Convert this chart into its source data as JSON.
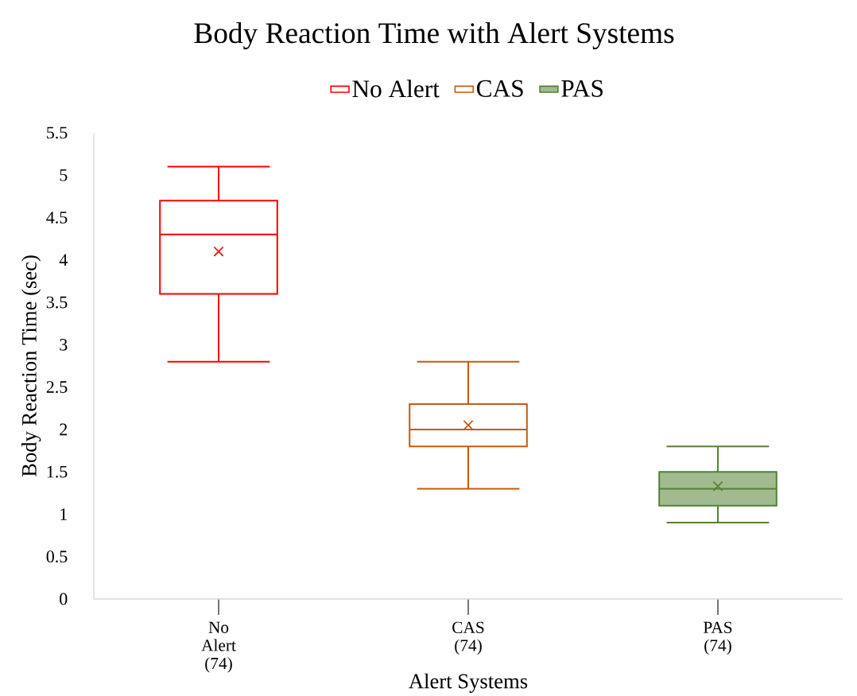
{
  "chart_data": {
    "type": "box",
    "title": "Body Reaction Time with Alert Systems",
    "xlabel": "Alert Systems",
    "ylabel": "Body Reaction Time (sec)",
    "categories": [
      "No Alert (74)",
      "CAS (74)",
      "PAS (74)"
    ],
    "series": [
      {
        "name": "No Alert",
        "color": "#ff0000",
        "boxes": [
          {
            "low": 2.8,
            "q1": 3.6,
            "median": 4.3,
            "q3": 4.7,
            "high": 5.1,
            "mean": 4.1
          },
          null,
          null
        ]
      },
      {
        "name": "CAS",
        "color": "#c55a11",
        "boxes": [
          null,
          {
            "low": 1.3,
            "q1": 1.8,
            "median": 2.0,
            "q3": 2.3,
            "high": 2.8,
            "mean": 2.05
          },
          null
        ]
      },
      {
        "name": "PAS",
        "color": "#548235",
        "boxes": [
          null,
          null,
          {
            "low": 0.9,
            "q1": 1.1,
            "median": 1.3,
            "q3": 1.5,
            "high": 1.8,
            "mean": 1.33
          }
        ]
      }
    ],
    "ylim": [
      0,
      5.5
    ],
    "yticks": [
      0,
      0.5,
      1,
      1.5,
      2,
      2.5,
      3,
      3.5,
      4,
      4.5,
      5,
      5.5
    ],
    "legend": "top"
  }
}
